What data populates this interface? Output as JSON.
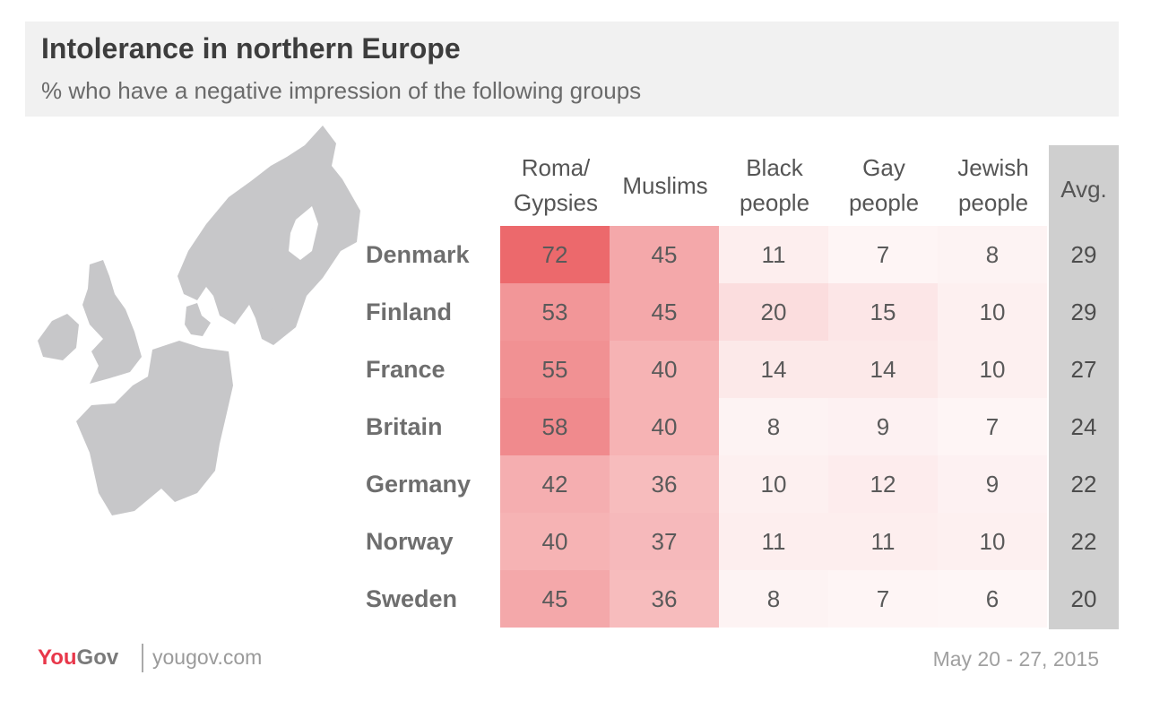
{
  "chart_data": {
    "type": "table",
    "title": "Intolerance in northern Europe",
    "subtitle": "% who have a negative impression of the following groups",
    "columns": [
      {
        "line1": "Roma/",
        "line2": "Gypsies"
      },
      {
        "line1": "Muslims",
        "line2": ""
      },
      {
        "line1": "Black",
        "line2": "people"
      },
      {
        "line1": "Gay",
        "line2": "people"
      },
      {
        "line1": "Jewish",
        "line2": "people"
      }
    ],
    "avg_label": "Avg.",
    "rows": [
      {
        "country": "Denmark",
        "values": [
          72,
          45,
          11,
          7,
          8
        ],
        "avg": 29
      },
      {
        "country": "Finland",
        "values": [
          53,
          45,
          20,
          15,
          10
        ],
        "avg": 29
      },
      {
        "country": "France",
        "values": [
          55,
          40,
          14,
          14,
          10
        ],
        "avg": 27
      },
      {
        "country": "Britain",
        "values": [
          58,
          40,
          8,
          9,
          7
        ],
        "avg": 24
      },
      {
        "country": "Germany",
        "values": [
          42,
          36,
          10,
          12,
          9
        ],
        "avg": 22
      },
      {
        "country": "Norway",
        "values": [
          40,
          37,
          11,
          11,
          10
        ],
        "avg": 22
      },
      {
        "country": "Sweden",
        "values": [
          45,
          36,
          8,
          7,
          6
        ],
        "avg": 20
      }
    ],
    "colors": {
      "heat": "#e8464a",
      "avg_band": "#cfcfcf",
      "map": "#c7c7c9"
    }
  },
  "footer": {
    "brand_you": "You",
    "brand_gov": "Gov",
    "url": "yougov.com",
    "date": "May 20 - 27, 2015"
  },
  "colors": {
    "brand_you": "#e8374a",
    "brand_gov": "#7a7a7a"
  }
}
